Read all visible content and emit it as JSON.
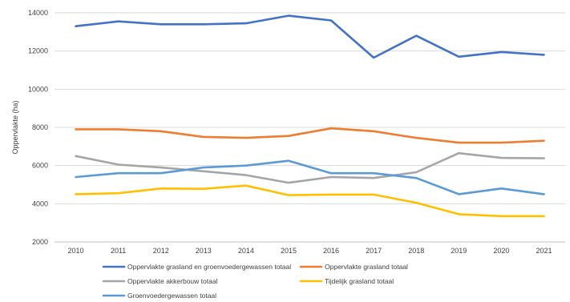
{
  "chart_data": {
    "type": "line",
    "title": "",
    "xlabel": "",
    "ylabel": "Oppervlakte (ha)",
    "ylim": [
      2000,
      14000
    ],
    "yticks": [
      2000,
      4000,
      6000,
      8000,
      10000,
      12000,
      14000
    ],
    "grid": true,
    "legend_position": "bottom",
    "categories": [
      "2010",
      "2011",
      "2012",
      "2013",
      "2014",
      "2015",
      "2016",
      "2017",
      "2018",
      "2019",
      "2020",
      "2021"
    ],
    "series": [
      {
        "name": "Oppervlakte grasland en groenvoedergewassen totaal",
        "color": "#4472c4",
        "values": [
          13300,
          13550,
          13400,
          13400,
          13450,
          13850,
          13600,
          11650,
          12800,
          11700,
          11950,
          11800
        ]
      },
      {
        "name": "Oppervlakte grasland totaal",
        "color": "#ed7d31",
        "values": [
          7900,
          7900,
          7800,
          7500,
          7450,
          7550,
          7950,
          7800,
          7450,
          7200,
          7200,
          7300
        ]
      },
      {
        "name": "Oppervlakte akkerbouw totaal",
        "color": "#a5a5a5",
        "values": [
          6500,
          6050,
          5900,
          5700,
          5500,
          5100,
          5400,
          5350,
          5650,
          6650,
          6400,
          6380
        ]
      },
      {
        "name": "Tijdelijk grasland totaal",
        "color": "#ffc000",
        "values": [
          4500,
          4550,
          4800,
          4780,
          4950,
          4450,
          4480,
          4480,
          4050,
          3450,
          3350,
          3350
        ]
      },
      {
        "name": "Groenvoedergewassen totaal",
        "color": "#5b9bd5",
        "values": [
          5400,
          5600,
          5600,
          5900,
          6000,
          6250,
          5600,
          5600,
          5350,
          4500,
          4800,
          4500
        ]
      }
    ]
  }
}
